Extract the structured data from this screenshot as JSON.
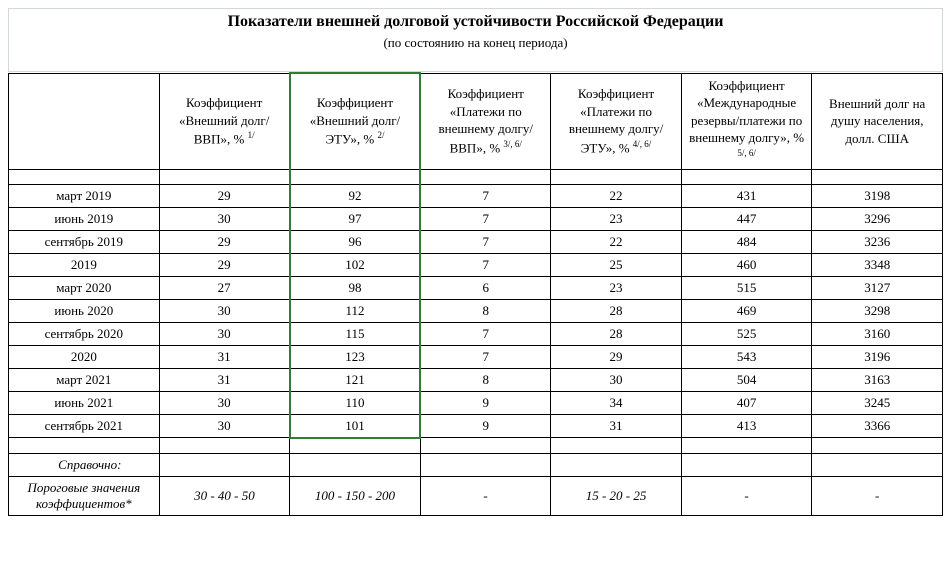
{
  "title": "Показатели внешней долговой устойчивости Российской Федерации",
  "subtitle": "(по состоянию на конец периода)",
  "columns": [
    {
      "line1": "",
      "line2": ""
    },
    {
      "line1": "Коэффициент «Внешний долг/ВВП», %",
      "sup": "1/"
    },
    {
      "line1": "Коэффициент «Внешний долг/ЭТУ», %",
      "sup": "2/"
    },
    {
      "line1": "Коэффициент «Платежи по внешнему долгу/ВВП», %",
      "sup": "3/, 6/"
    },
    {
      "line1": "Коэффициент «Платежи по внешнему долгу/ЭТУ», %",
      "sup": "4/, 6/"
    },
    {
      "line1": "Коэффициент «Международные резервы/платежи по внешнему долгу», %",
      "sup": "5/, 6/"
    },
    {
      "line1": "Внешний долг на душу населения, долл. США",
      "sup": ""
    }
  ],
  "rows": [
    {
      "period": "март  2019",
      "v": [
        "29",
        "92",
        "7",
        "22",
        "431",
        "3198"
      ]
    },
    {
      "period": "июнь 2019",
      "v": [
        "30",
        "97",
        "7",
        "23",
        "447",
        "3296"
      ]
    },
    {
      "period": "сентябрь 2019",
      "v": [
        "29",
        "96",
        "7",
        "22",
        "484",
        "3236"
      ]
    },
    {
      "period": "2019",
      "v": [
        "29",
        "102",
        "7",
        "25",
        "460",
        "3348"
      ]
    },
    {
      "period": "март 2020",
      "v": [
        "27",
        "98",
        "6",
        "23",
        "515",
        "3127"
      ]
    },
    {
      "period": "июнь 2020",
      "v": [
        "30",
        "112",
        "8",
        "28",
        "469",
        "3298"
      ]
    },
    {
      "period": "сентябрь 2020",
      "v": [
        "30",
        "115",
        "7",
        "28",
        "525",
        "3160"
      ]
    },
    {
      "period": "2020",
      "v": [
        "31",
        "123",
        "7",
        "29",
        "543",
        "3196"
      ]
    },
    {
      "period": "март 2021",
      "v": [
        "31",
        "121",
        "8",
        "30",
        "504",
        "3163"
      ]
    },
    {
      "period": "июнь 2021",
      "v": [
        "30",
        "110",
        "9",
        "34",
        "407",
        "3245"
      ]
    },
    {
      "period": "сентябрь 2021",
      "v": [
        "30",
        "101",
        "9",
        "31",
        "413",
        "3366"
      ]
    }
  ],
  "reference_label": "Справочно:",
  "thresholds_label": "Пороговые значения коэффициентов*",
  "thresholds": [
    "30 - 40 - 50",
    "100 - 150 - 200",
    "-",
    "15 - 20 - 25",
    "-",
    "-"
  ]
}
